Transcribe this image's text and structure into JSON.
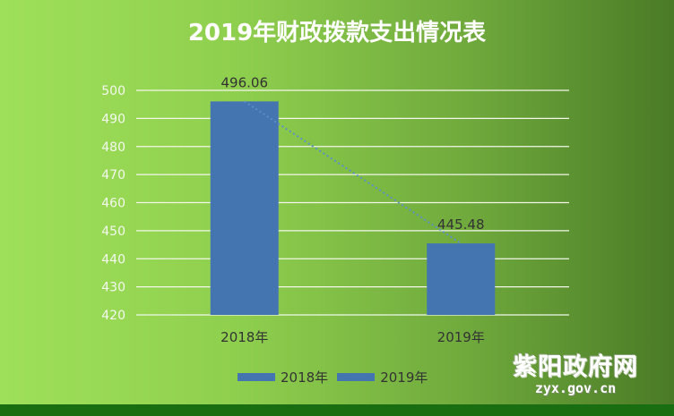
{
  "chart_data": {
    "type": "bar",
    "title": "2019年财政拨款支出情况表",
    "categories": [
      "2018年",
      "2019年"
    ],
    "values": [
      496.06,
      445.48
    ],
    "data_labels": [
      "496.06",
      "445.48"
    ],
    "ylim": [
      420,
      500
    ],
    "yticks": [
      420,
      430,
      440,
      450,
      460,
      470,
      480,
      490,
      500
    ],
    "grid": true,
    "trendline": true,
    "legend_position": "bottom",
    "legend": [
      "2018年",
      "2019年"
    ],
    "bar_color": "#4575b0"
  },
  "watermark": {
    "site_name": "紫阳政府网",
    "url": "zyx.gov.cn"
  }
}
